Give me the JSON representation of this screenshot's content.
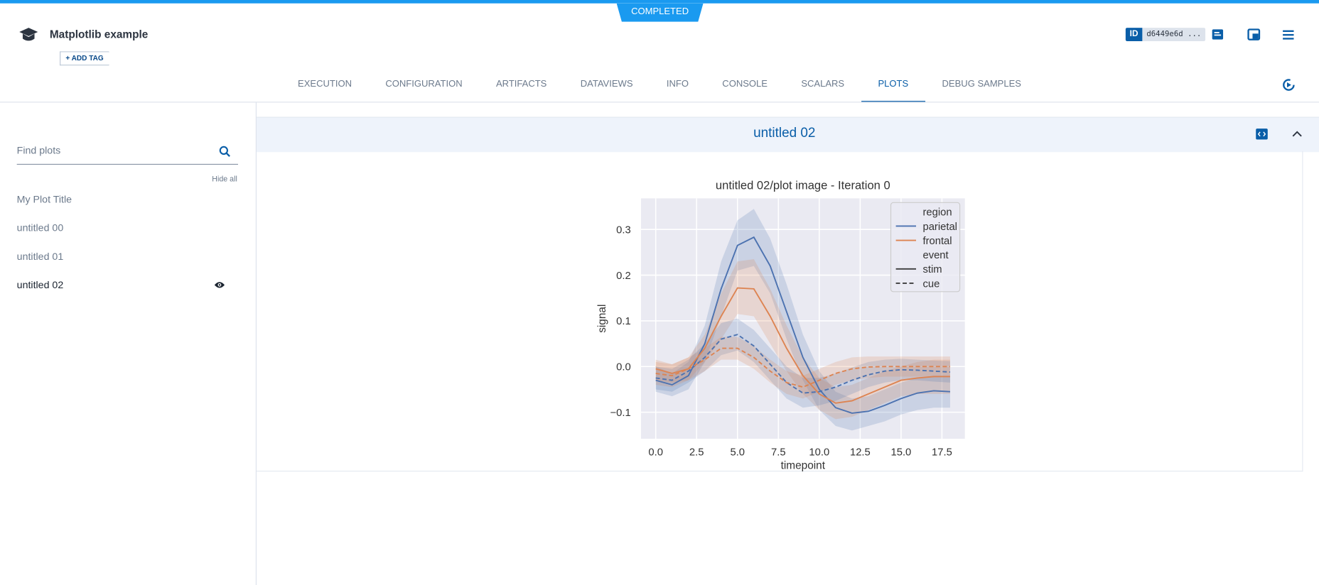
{
  "header": {
    "status": "COMPLETED",
    "title": "Matplotlib example",
    "add_tag": "ADD TAG",
    "id_badge": "ID",
    "id": "d6449e6d ..."
  },
  "tabs": {
    "items": [
      "EXECUTION",
      "CONFIGURATION",
      "ARTIFACTS",
      "DATAVIEWS",
      "INFO",
      "CONSOLE",
      "SCALARS",
      "PLOTS",
      "DEBUG SAMPLES"
    ],
    "active": 7
  },
  "sidebar": {
    "search_placeholder": "Find plots",
    "hide_all": "Hide all",
    "items": [
      "My Plot Title",
      "untitled 00",
      "untitled 01",
      "untitled 02"
    ],
    "selected": 3
  },
  "panel": {
    "title": "untitled 02"
  },
  "chart_data": {
    "type": "line",
    "title": "untitled 02/plot image - Iteration 0",
    "xlabel": "timepoint",
    "ylabel": "signal",
    "x": [
      0,
      1,
      2,
      3,
      4,
      5,
      6,
      7,
      8,
      9,
      10,
      11,
      12,
      13,
      14,
      15,
      16,
      17,
      18
    ],
    "xlim": [
      -0.9,
      18.9
    ],
    "ylim": [
      -0.158,
      0.368
    ],
    "xticks": [
      {
        "value": 0,
        "label": "0.0"
      },
      2.5,
      {
        "value": 5,
        "label": "5.0"
      },
      7.5,
      {
        "value": 10,
        "label": "10.0"
      },
      12.5,
      {
        "value": 15,
        "label": "15.0"
      },
      17.5
    ],
    "yticks": [
      {
        "value": -0.1,
        "label": "−0.1"
      },
      {
        "value": 0,
        "label": "0.0"
      },
      0.1,
      0.2,
      0.3
    ],
    "grid": true,
    "background": "#eaeaf2",
    "series": [
      {
        "color": "#4c72b0",
        "dash": false,
        "values": [
          -0.03,
          -0.04,
          -0.02,
          0.05,
          0.17,
          0.265,
          0.283,
          0.22,
          0.12,
          0.02,
          -0.05,
          -0.09,
          -0.102,
          -0.098,
          -0.085,
          -0.07,
          -0.058,
          -0.053,
          -0.055
        ],
        "upper": [
          0.0,
          -0.015,
          0.01,
          0.09,
          0.23,
          0.32,
          0.345,
          0.28,
          0.18,
          0.07,
          -0.01,
          -0.055,
          -0.07,
          -0.065,
          -0.05,
          -0.035,
          -0.025,
          -0.02,
          -0.02
        ],
        "lower": [
          -0.055,
          -0.065,
          -0.05,
          0.01,
          0.11,
          0.21,
          0.22,
          0.16,
          0.06,
          -0.03,
          -0.095,
          -0.13,
          -0.14,
          -0.13,
          -0.12,
          -0.105,
          -0.095,
          -0.09,
          -0.09
        ]
      },
      {
        "color": "#dd8452",
        "dash": false,
        "values": [
          -0.005,
          -0.015,
          -0.005,
          0.04,
          0.11,
          0.172,
          0.17,
          0.11,
          0.04,
          -0.02,
          -0.06,
          -0.08,
          -0.075,
          -0.06,
          -0.045,
          -0.03,
          -0.025,
          -0.022,
          -0.022
        ],
        "upper": [
          0.015,
          0.005,
          0.02,
          0.07,
          0.16,
          0.23,
          0.235,
          0.17,
          0.09,
          0.02,
          -0.025,
          -0.045,
          -0.04,
          -0.025,
          -0.01,
          0.0,
          0.01,
          0.015,
          0.015
        ],
        "lower": [
          -0.03,
          -0.035,
          -0.03,
          0.01,
          0.06,
          0.115,
          0.11,
          0.05,
          -0.01,
          -0.06,
          -0.095,
          -0.115,
          -0.11,
          -0.095,
          -0.08,
          -0.065,
          -0.06,
          -0.06,
          -0.06
        ]
      },
      {
        "color": "#4c72b0",
        "dash": true,
        "values": [
          -0.025,
          -0.03,
          -0.01,
          0.02,
          0.06,
          0.07,
          0.045,
          0.005,
          -0.035,
          -0.058,
          -0.055,
          -0.045,
          -0.03,
          -0.018,
          -0.01,
          -0.007,
          -0.008,
          -0.01,
          -0.012
        ],
        "upper": [
          0.0,
          -0.005,
          0.015,
          0.05,
          0.095,
          0.105,
          0.08,
          0.04,
          0.0,
          -0.025,
          -0.025,
          -0.015,
          -0.002,
          0.01,
          0.015,
          0.017,
          0.015,
          0.013,
          0.012
        ],
        "lower": [
          -0.05,
          -0.055,
          -0.035,
          -0.01,
          0.025,
          0.035,
          0.01,
          -0.03,
          -0.07,
          -0.09,
          -0.085,
          -0.075,
          -0.06,
          -0.045,
          -0.035,
          -0.03,
          -0.03,
          -0.033,
          -0.035
        ]
      },
      {
        "color": "#dd8452",
        "dash": true,
        "values": [
          -0.015,
          -0.02,
          -0.005,
          0.015,
          0.04,
          0.04,
          0.02,
          -0.01,
          -0.035,
          -0.045,
          -0.03,
          -0.015,
          -0.005,
          -0.001,
          0.0,
          0.0,
          0.0,
          0.0,
          0.0
        ],
        "upper": [
          0.01,
          0.005,
          0.02,
          0.04,
          0.065,
          0.065,
          0.045,
          0.015,
          -0.01,
          -0.02,
          -0.005,
          0.01,
          0.02,
          0.022,
          0.022,
          0.022,
          0.022,
          0.022,
          0.022
        ],
        "lower": [
          -0.04,
          -0.045,
          -0.03,
          -0.01,
          0.015,
          0.015,
          -0.005,
          -0.035,
          -0.06,
          -0.07,
          -0.055,
          -0.04,
          -0.03,
          -0.025,
          -0.022,
          -0.022,
          -0.022,
          -0.022,
          -0.022
        ]
      }
    ],
    "legend": {
      "loc": "upper right",
      "entries": [
        {
          "label": "region"
        },
        {
          "label": "parietal",
          "color": "#4c72b0",
          "dash": false
        },
        {
          "label": "frontal",
          "color": "#dd8452",
          "dash": false
        },
        {
          "label": "event"
        },
        {
          "label": "stim",
          "color": "#3d3d3d",
          "dash": false
        },
        {
          "label": "cue",
          "color": "#3d3d3d",
          "dash": true
        }
      ]
    }
  }
}
